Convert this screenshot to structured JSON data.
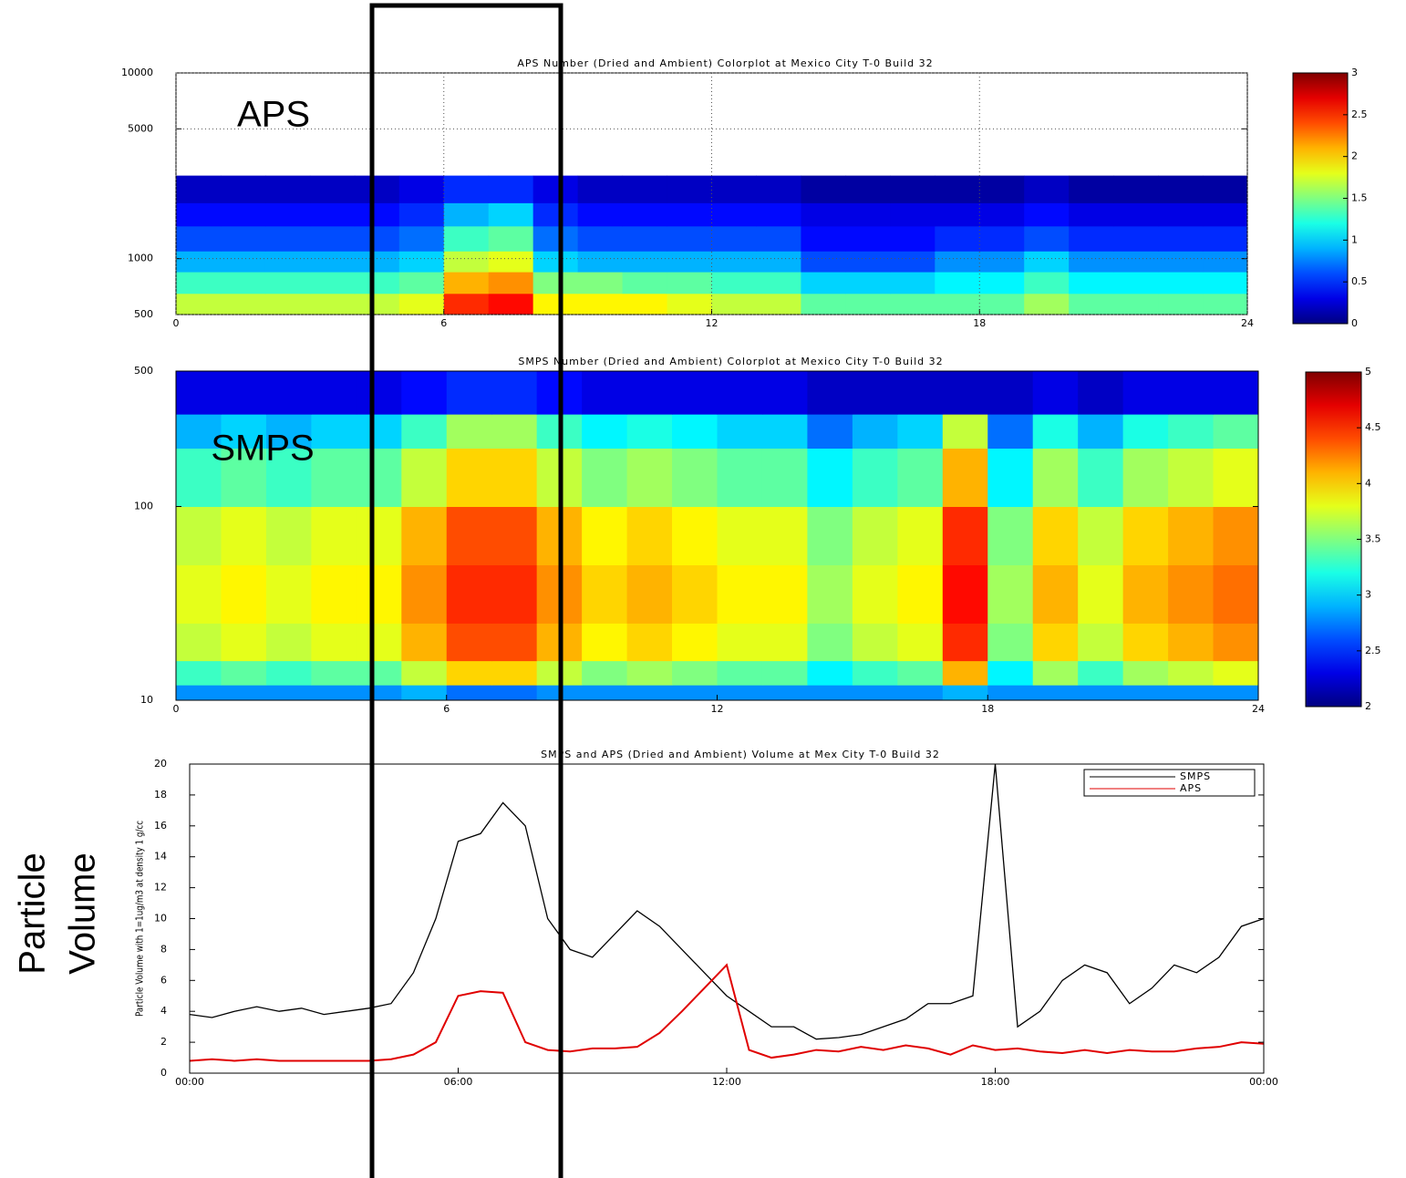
{
  "chart_data": [
    {
      "type": "heatmap",
      "title": "APS Number (Dried and Ambient) Colorplot at Mexico City T-0 Build 32",
      "annotation": "APS",
      "colormap": "jet",
      "log_y": true,
      "grid": true,
      "x_edges": [
        0,
        1,
        2,
        3,
        4,
        5,
        6,
        7,
        8,
        9,
        10,
        11,
        12,
        13,
        14,
        15,
        16,
        17,
        18,
        19,
        20,
        21,
        22,
        23,
        24
      ],
      "y_edges": [
        500,
        650,
        850,
        1100,
        1500,
        2000,
        2800
      ],
      "values": [
        [
          1.7,
          1.7,
          1.7,
          1.7,
          1.7,
          1.8,
          2.5,
          2.6,
          1.9,
          1.9,
          1.9,
          1.8,
          1.7,
          1.7,
          1.4,
          1.4,
          1.4,
          1.4,
          1.4,
          1.6,
          1.4,
          1.4,
          1.4,
          1.4
        ],
        [
          1.3,
          1.3,
          1.3,
          1.3,
          1.3,
          1.4,
          2.1,
          2.2,
          1.5,
          1.5,
          1.4,
          1.4,
          1.3,
          1.3,
          1.0,
          1.0,
          1.0,
          1.1,
          1.1,
          1.3,
          1.1,
          1.1,
          1.1,
          1.1
        ],
        [
          0.9,
          0.9,
          0.9,
          0.9,
          0.9,
          1.0,
          1.7,
          1.8,
          1.0,
          0.9,
          0.9,
          0.9,
          0.9,
          0.9,
          0.6,
          0.6,
          0.6,
          0.8,
          0.8,
          1.0,
          0.8,
          0.8,
          0.8,
          0.8
        ],
        [
          0.6,
          0.6,
          0.6,
          0.6,
          0.6,
          0.7,
          1.3,
          1.4,
          0.7,
          0.6,
          0.6,
          0.6,
          0.6,
          0.6,
          0.4,
          0.4,
          0.4,
          0.5,
          0.5,
          0.6,
          0.5,
          0.5,
          0.5,
          0.5
        ],
        [
          0.4,
          0.4,
          0.4,
          0.4,
          0.4,
          0.5,
          0.9,
          1.0,
          0.5,
          0.4,
          0.4,
          0.4,
          0.4,
          0.4,
          0.3,
          0.3,
          0.3,
          0.3,
          0.3,
          0.4,
          0.3,
          0.3,
          0.3,
          0.3
        ],
        [
          0.2,
          0.2,
          0.2,
          0.2,
          0.2,
          0.3,
          0.5,
          0.5,
          0.3,
          0.2,
          0.2,
          0.2,
          0.2,
          0.2,
          0.1,
          0.1,
          0.1,
          0.1,
          0.1,
          0.2,
          0.1,
          0.1,
          0.1,
          0.1
        ]
      ],
      "xlim": [
        0,
        24
      ],
      "xticks": [
        0,
        6,
        12,
        18,
        24
      ],
      "ylim": [
        500,
        10000
      ],
      "yticks": [
        500,
        1000,
        5000,
        10000
      ],
      "clim": [
        0,
        3
      ],
      "cticks": [
        0,
        0.5,
        1,
        1.5,
        2,
        2.5,
        3
      ]
    },
    {
      "type": "heatmap",
      "title": "SMPS Number (Dried and Ambient) Colorplot at Mexico City T-0 Build 32",
      "annotation": "SMPS",
      "colormap": "jet",
      "log_y": true,
      "grid": false,
      "x_edges": [
        0,
        1,
        2,
        3,
        4,
        5,
        6,
        7,
        8,
        9,
        10,
        11,
        12,
        13,
        14,
        15,
        16,
        17,
        18,
        19,
        20,
        21,
        22,
        23,
        24
      ],
      "y_edges": [
        10,
        12,
        16,
        25,
        50,
        100,
        200,
        300,
        500
      ],
      "values": [
        [
          2.8,
          2.8,
          2.8,
          2.8,
          2.8,
          2.9,
          2.7,
          2.7,
          2.8,
          2.8,
          2.8,
          2.8,
          2.8,
          2.8,
          2.8,
          2.8,
          2.8,
          2.9,
          2.8,
          2.8,
          2.8,
          2.8,
          2.8,
          2.8
        ],
        [
          3.3,
          3.4,
          3.3,
          3.4,
          3.4,
          3.7,
          4.0,
          4.0,
          3.7,
          3.5,
          3.6,
          3.5,
          3.4,
          3.4,
          3.1,
          3.3,
          3.4,
          4.1,
          3.1,
          3.6,
          3.3,
          3.6,
          3.7,
          3.8
        ],
        [
          3.7,
          3.8,
          3.7,
          3.8,
          3.8,
          4.1,
          4.4,
          4.4,
          4.1,
          3.9,
          4.0,
          3.9,
          3.8,
          3.8,
          3.5,
          3.7,
          3.8,
          4.5,
          3.5,
          4.0,
          3.7,
          4.0,
          4.1,
          4.2
        ],
        [
          3.8,
          3.9,
          3.8,
          3.9,
          3.9,
          4.2,
          4.5,
          4.5,
          4.2,
          4.0,
          4.1,
          4.0,
          3.9,
          3.9,
          3.6,
          3.8,
          3.9,
          4.6,
          3.6,
          4.1,
          3.8,
          4.1,
          4.2,
          4.3
        ],
        [
          3.7,
          3.8,
          3.7,
          3.8,
          3.8,
          4.1,
          4.4,
          4.4,
          4.1,
          3.9,
          4.0,
          3.9,
          3.8,
          3.8,
          3.5,
          3.7,
          3.8,
          4.5,
          3.5,
          4.0,
          3.7,
          4.0,
          4.1,
          4.2
        ],
        [
          3.3,
          3.4,
          3.3,
          3.4,
          3.4,
          3.7,
          4.0,
          4.0,
          3.7,
          3.5,
          3.6,
          3.5,
          3.4,
          3.4,
          3.1,
          3.3,
          3.4,
          4.1,
          3.1,
          3.6,
          3.3,
          3.6,
          3.7,
          3.8
        ],
        [
          2.9,
          3.0,
          2.9,
          3.0,
          3.0,
          3.3,
          3.6,
          3.6,
          3.3,
          3.1,
          3.2,
          3.1,
          3.0,
          3.0,
          2.7,
          2.9,
          3.0,
          3.7,
          2.7,
          3.2,
          2.9,
          3.2,
          3.3,
          3.4
        ],
        [
          2.3,
          2.3,
          2.3,
          2.3,
          2.3,
          2.4,
          2.5,
          2.5,
          2.4,
          2.3,
          2.3,
          2.3,
          2.3,
          2.3,
          2.2,
          2.2,
          2.2,
          2.2,
          2.2,
          2.3,
          2.2,
          2.3,
          2.3,
          2.3
        ]
      ],
      "xlim": [
        0,
        24
      ],
      "xticks": [
        0,
        6,
        12,
        18,
        24
      ],
      "ylim": [
        10,
        500
      ],
      "yticks": [
        10,
        100,
        500
      ],
      "clim": [
        2,
        5
      ],
      "cticks": [
        2,
        2.5,
        3,
        3.5,
        4,
        4.5,
        5
      ]
    },
    {
      "type": "line",
      "title": "SMPS and APS (Dried and Ambient) Volume at Mex City T-0 Build 32",
      "annotation": [
        "Particle",
        "Volume"
      ],
      "y_label": "Particle Volume with 1=1ug/m3 at density 1 g/cc",
      "legend": "top-right",
      "x": [
        0,
        0.5,
        1,
        1.5,
        2,
        2.5,
        3,
        3.5,
        4,
        4.5,
        5,
        5.5,
        6,
        6.5,
        7,
        7.5,
        8,
        8.5,
        9,
        9.5,
        10,
        10.5,
        11,
        11.5,
        12,
        12.5,
        13,
        13.5,
        14,
        14.5,
        15,
        15.5,
        16,
        16.5,
        17,
        17.5,
        18,
        18.5,
        19,
        19.5,
        20,
        20.5,
        21,
        21.5,
        22,
        22.5,
        23,
        23.5,
        24
      ],
      "series": [
        {
          "name": "SMPS",
          "color": "#000000",
          "values": [
            3.8,
            3.6,
            4.0,
            4.3,
            4.0,
            4.2,
            3.8,
            4.0,
            4.2,
            4.5,
            6.5,
            10,
            15,
            15.5,
            17.5,
            16,
            10,
            8,
            7.5,
            9,
            10.5,
            9.5,
            8,
            6.5,
            5,
            4,
            3,
            3,
            2.2,
            2.3,
            2.5,
            3,
            3.5,
            4.5,
            4.5,
            5,
            20,
            3,
            4,
            6,
            7,
            6.5,
            4.5,
            5.5,
            7,
            6.5,
            7.5,
            9.5,
            10
          ]
        },
        {
          "name": "APS",
          "color": "#e00000",
          "values": [
            0.8,
            0.9,
            0.8,
            0.9,
            0.8,
            0.8,
            0.8,
            0.8,
            0.8,
            0.9,
            1.2,
            2,
            5,
            5.3,
            5.2,
            2,
            1.5,
            1.4,
            1.6,
            1.6,
            1.7,
            2.6,
            4,
            5.5,
            7,
            1.5,
            1,
            1.2,
            1.5,
            1.4,
            1.7,
            1.5,
            1.8,
            1.6,
            1.2,
            1.8,
            1.5,
            1.6,
            1.4,
            1.3,
            1.5,
            1.3,
            1.5,
            1.4,
            1.4,
            1.6,
            1.7,
            2,
            1.9
          ]
        }
      ],
      "xlim": [
        0,
        24
      ],
      "xticks": [
        {
          "value": 0,
          "label": "00:00"
        },
        {
          "value": 6,
          "label": "06:00"
        },
        {
          "value": 12,
          "label": "12:00"
        },
        {
          "value": 18,
          "label": "18:00"
        },
        {
          "value": 24,
          "label": "00:00"
        }
      ],
      "ylim": [
        0,
        20
      ],
      "yticks": [
        0,
        2,
        4,
        6,
        8,
        10,
        12,
        14,
        16,
        18,
        20
      ]
    }
  ]
}
